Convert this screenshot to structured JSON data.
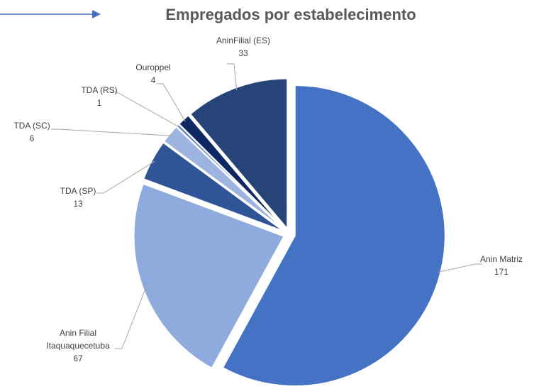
{
  "chart_data": {
    "type": "pie",
    "title": "Empregados por estabelecimento",
    "categories": [
      "Anin Matriz",
      "Anin Filial Itaquaquecetuba",
      "TDA (SP)",
      "TDA (SC)",
      "TDA (RS)",
      "Ouroppel",
      "AninFilial (ES)"
    ],
    "values": [
      171,
      67,
      13,
      6,
      1,
      4,
      33
    ],
    "colors": [
      "#4472c4",
      "#8faadc",
      "#2f5597",
      "#9db4e0",
      "#5b7fc7",
      "#0f2863",
      "#264478"
    ]
  }
}
